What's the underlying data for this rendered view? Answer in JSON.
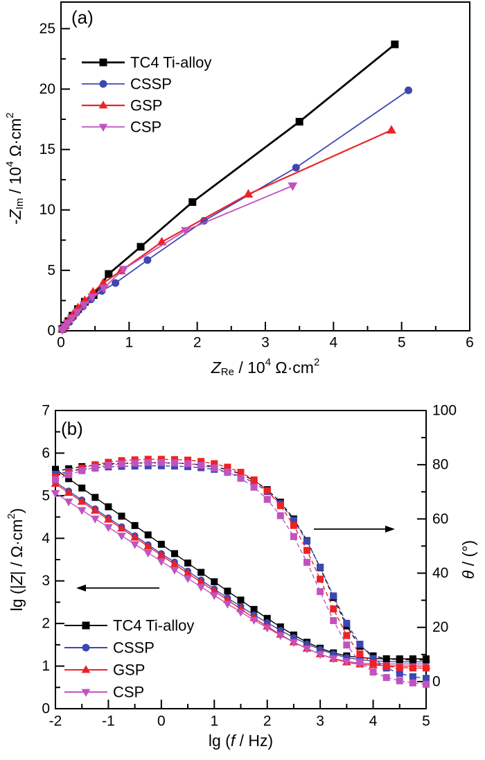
{
  "figure": {
    "description": "Two-panel electrochemical impedance figure",
    "panel_a_label": "(a)",
    "panel_b_label": "(b)"
  },
  "colors": {
    "tc4": "#000000",
    "cssp": "#3c47b2",
    "gsp": "#ec2227",
    "csp": "#c253be"
  },
  "legend_items": [
    "TC4 Ti-alloy",
    "CSSP",
    "GSP",
    "CSP"
  ],
  "chart_data": [
    {
      "id": "chartA",
      "type": "line",
      "panel_label": "(a)",
      "title": "",
      "xlabel_parts": [
        {
          "t": "Z",
          "i": true
        },
        {
          "t": "Re",
          "sub": true
        },
        {
          "t": " / 10"
        },
        {
          "t": "4",
          "sup": true
        },
        {
          "t": " Ω·cm"
        },
        {
          "t": "2",
          "sup": true
        }
      ],
      "ylabel_parts": [
        {
          "t": "-"
        },
        {
          "t": "Z",
          "i": true
        },
        {
          "t": "Im",
          "sub": true
        },
        {
          "t": " / 10"
        },
        {
          "t": "4",
          "sup": true
        },
        {
          "t": " Ω·cm"
        },
        {
          "t": "2",
          "sup": true
        }
      ],
      "xlim": [
        0,
        6
      ],
      "ylim": [
        0,
        27.2
      ],
      "xticks": [
        0,
        1,
        2,
        3,
        4,
        5,
        6
      ],
      "yticks": [
        0,
        5,
        10,
        15,
        20,
        25
      ],
      "x_minor_step": 0.5,
      "y_minor_step": 2.5,
      "grid": false,
      "legend_position": "upper-left-inside",
      "series": [
        {
          "name": "TC4 Ti-alloy",
          "color": "#000000",
          "marker": "square",
          "line": "solid",
          "width": 2.8,
          "x": [
            0.02,
            0.06,
            0.11,
            0.17,
            0.25,
            0.35,
            0.48,
            0.7,
            1.17,
            1.93,
            3.5,
            4.9
          ],
          "y": [
            0.15,
            0.45,
            0.8,
            1.25,
            1.8,
            2.4,
            2.95,
            4.7,
            6.95,
            10.65,
            17.3,
            23.7
          ]
        },
        {
          "name": "CSSP",
          "color": "#3c47b2",
          "marker": "circle",
          "line": "solid",
          "width": 1.8,
          "x": [
            0.02,
            0.06,
            0.1,
            0.16,
            0.23,
            0.32,
            0.44,
            0.6,
            0.8,
            1.27,
            2.1,
            3.45,
            5.1
          ],
          "y": [
            0.1,
            0.35,
            0.65,
            1.05,
            1.5,
            2.0,
            2.6,
            3.3,
            3.95,
            5.85,
            9.1,
            13.5,
            19.9
          ]
        },
        {
          "name": "GSP",
          "color": "#ec2227",
          "marker": "triangle-up",
          "line": "solid",
          "width": 2.2,
          "x": [
            0.02,
            0.06,
            0.11,
            0.17,
            0.25,
            0.35,
            0.47,
            0.62,
            0.88,
            1.48,
            2.75,
            4.85
          ],
          "y": [
            0.15,
            0.45,
            0.85,
            1.3,
            1.9,
            2.5,
            3.2,
            3.95,
            4.95,
            7.35,
            11.3,
            16.6
          ]
        },
        {
          "name": "CSP",
          "color": "#c253be",
          "marker": "triangle-down",
          "line": "solid",
          "width": 1.8,
          "x": [
            0.02,
            0.06,
            0.1,
            0.16,
            0.24,
            0.34,
            0.46,
            0.63,
            0.92,
            1.83,
            3.4
          ],
          "y": [
            0.1,
            0.35,
            0.65,
            1.05,
            1.55,
            2.15,
            2.8,
            3.55,
            5.1,
            8.3,
            12.0
          ]
        }
      ]
    },
    {
      "id": "chartB",
      "type": "line",
      "panel_label": "(b)",
      "title": "",
      "xlabel_parts": [
        {
          "t": "lg ("
        },
        {
          "t": "f",
          "i": true
        },
        {
          "t": " / Hz)"
        }
      ],
      "ylabel_left_parts": [
        {
          "t": "lg (|"
        },
        {
          "t": "Z",
          "i": true
        },
        {
          "t": "| / Ω·cm"
        },
        {
          "t": "2",
          "sup": true
        },
        {
          "t": ")"
        }
      ],
      "ylabel_right_parts": [
        {
          "t": "θ",
          "i": true
        },
        {
          "t": " / (°)"
        }
      ],
      "xlim": [
        -2,
        5
      ],
      "ylim_left": [
        0,
        7
      ],
      "ylim_right": [
        -10,
        100
      ],
      "xticks": [
        -2,
        -1,
        0,
        1,
        2,
        3,
        4,
        5
      ],
      "yticks_left": [
        0,
        1,
        2,
        3,
        4,
        5,
        6,
        7
      ],
      "yticks_right": [
        0,
        20,
        40,
        60,
        80,
        100
      ],
      "x_minor_step": 0.5,
      "y_left_minor_step": 0.5,
      "y_right_minor_step": 10,
      "grid": false,
      "legend_position": "lower-left-inside",
      "x": [
        -2,
        -1.75,
        -1.5,
        -1.25,
        -1,
        -0.75,
        -0.5,
        -0.25,
        0,
        0.25,
        0.5,
        0.75,
        1,
        1.25,
        1.5,
        1.75,
        2,
        2.25,
        2.5,
        2.75,
        3,
        3.25,
        3.5,
        3.75,
        4,
        4.25,
        4.5,
        4.75,
        5
      ],
      "series": [
        {
          "name": "TC4 Ti-alloy",
          "curve": "lg|Z|",
          "axis": "left",
          "color": "#000000",
          "marker": "square",
          "line": "solid",
          "width": 1.4,
          "y": [
            5.62,
            5.4,
            5.18,
            4.96,
            4.74,
            4.52,
            4.3,
            4.08,
            3.86,
            3.64,
            3.42,
            3.2,
            2.98,
            2.76,
            2.55,
            2.33,
            2.12,
            1.92,
            1.73,
            1.56,
            1.42,
            1.31,
            1.24,
            1.2,
            1.18,
            1.17,
            1.17,
            1.17,
            1.17
          ]
        },
        {
          "name": "CSSP",
          "curve": "lg|Z|",
          "axis": "left",
          "color": "#3c47b2",
          "marker": "circle",
          "line": "solid",
          "width": 1.4,
          "y": [
            5.32,
            5.11,
            4.9,
            4.69,
            4.48,
            4.27,
            4.06,
            3.85,
            3.64,
            3.44,
            3.23,
            3.02,
            2.81,
            2.6,
            2.4,
            2.2,
            2.02,
            1.84,
            1.67,
            1.52,
            1.39,
            1.28,
            1.2,
            1.15,
            1.12,
            1.11,
            1.1,
            1.1,
            1.1
          ]
        },
        {
          "name": "GSP",
          "curve": "lg|Z|",
          "axis": "left",
          "color": "#ec2227",
          "marker": "triangle-up",
          "line": "solid",
          "width": 1.4,
          "y": [
            5.28,
            5.07,
            4.86,
            4.65,
            4.44,
            4.23,
            4.02,
            3.81,
            3.6,
            3.39,
            3.18,
            2.97,
            2.76,
            2.55,
            2.34,
            2.13,
            1.93,
            1.74,
            1.56,
            1.41,
            1.28,
            1.17,
            1.09,
            1.04,
            1.02,
            1.01,
            1.0,
            1.0,
            1.0
          ]
        },
        {
          "name": "CSP",
          "curve": "lg|Z|",
          "axis": "left",
          "color": "#c253be",
          "marker": "triangle-down",
          "line": "solid",
          "width": 1.4,
          "y": [
            5.06,
            4.86,
            4.66,
            4.46,
            4.26,
            4.06,
            3.86,
            3.66,
            3.46,
            3.26,
            3.06,
            2.86,
            2.66,
            2.46,
            2.27,
            2.08,
            1.9,
            1.72,
            1.56,
            1.41,
            1.28,
            1.18,
            1.11,
            1.07,
            1.06,
            1.05,
            1.05,
            1.05,
            1.05
          ]
        },
        {
          "name": "TC4 Ti-alloy",
          "curve": "theta",
          "axis": "right",
          "color": "#000000",
          "marker": "square",
          "line": "dash",
          "width": 1.4,
          "y": [
            77.5,
            78.5,
            79.3,
            79.9,
            80.3,
            80.5,
            80.6,
            80.7,
            80.7,
            80.6,
            80.4,
            80.0,
            79.3,
            78.2,
            76.6,
            74.2,
            70.8,
            66.2,
            60.0,
            52.0,
            42.0,
            31.0,
            20.5,
            13.0,
            9.5,
            8.4,
            8.1,
            8.0,
            8.0
          ]
        },
        {
          "name": "CSSP",
          "curve": "theta",
          "axis": "right",
          "color": "#3c47b2",
          "marker": "square",
          "line": "dash",
          "width": 1.4,
          "y": [
            76.5,
            77.5,
            78.3,
            78.8,
            79.2,
            79.4,
            79.5,
            79.6,
            79.6,
            79.5,
            79.3,
            78.9,
            78.3,
            77.2,
            75.7,
            73.4,
            70.1,
            65.6,
            59.5,
            51.8,
            42.2,
            31.6,
            21.5,
            13.8,
            8.5,
            5.0,
            3.0,
            1.8,
            1.2
          ]
        },
        {
          "name": "GSP",
          "curve": "theta",
          "axis": "right",
          "color": "#ec2227",
          "marker": "square",
          "line": "dash",
          "width": 1.4,
          "y": [
            75.5,
            77.2,
            78.8,
            80.0,
            80.9,
            81.5,
            81.8,
            82.0,
            82.0,
            81.9,
            81.7,
            81.2,
            80.4,
            79.1,
            77.2,
            74.4,
            70.4,
            64.9,
            57.6,
            48.4,
            37.8,
            26.8,
            17.0,
            10.2,
            6.8,
            5.6,
            5.2,
            5.0,
            5.0
          ]
        },
        {
          "name": "CSP",
          "curve": "theta",
          "axis": "right",
          "color": "#c253be",
          "marker": "square",
          "line": "dash",
          "width": 1.4,
          "y": [
            74.5,
            76.3,
            77.8,
            79.0,
            79.8,
            80.3,
            80.6,
            80.8,
            80.8,
            80.7,
            80.4,
            79.8,
            78.8,
            77.3,
            75.0,
            71.7,
            67.2,
            61.2,
            53.5,
            44.0,
            33.2,
            22.5,
            13.5,
            7.2,
            3.5,
            1.5,
            0.3,
            -0.5,
            -1.0
          ]
        }
      ],
      "annotations": [
        {
          "name": "left-axis-arrow",
          "meaning": "|Z| curves read on left axis",
          "dir": "left"
        },
        {
          "name": "right-axis-arrow",
          "meaning": "phase curves read on right axis",
          "dir": "right"
        }
      ]
    }
  ]
}
